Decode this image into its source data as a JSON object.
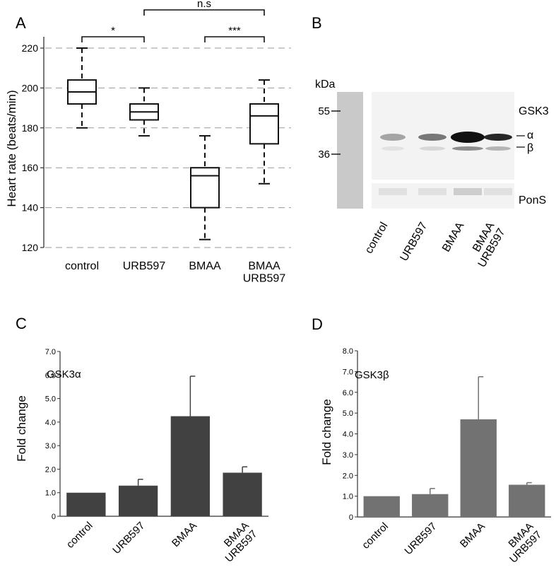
{
  "panel_labels": [
    "A",
    "B",
    "C",
    "D"
  ],
  "chart_data": [
    {
      "type": "box",
      "panel": "A",
      "ylabel": "Heart rate (beats/min)",
      "ylim": [
        120,
        220
      ],
      "yticks": [
        "120",
        "140",
        "160",
        "180",
        "200",
        "220"
      ],
      "grid": true,
      "categories": [
        "control",
        "URB597",
        "BMAA",
        "BMAA\nURB597"
      ],
      "boxes": [
        {
          "min": 180,
          "q1": 192,
          "median": 198,
          "q3": 204,
          "max": 220
        },
        {
          "min": 176,
          "q1": 184,
          "median": 188,
          "q3": 192,
          "max": 200
        },
        {
          "min": 124,
          "q1": 140,
          "median": 156,
          "q3": 160,
          "max": 176
        },
        {
          "min": 152,
          "q1": 172,
          "median": 186,
          "q3": 192,
          "max": 204
        }
      ],
      "significance": [
        {
          "from": 0,
          "to": 1,
          "label": "*"
        },
        {
          "from": 2,
          "to": 3,
          "label": "***"
        },
        {
          "from": 1,
          "to": 3,
          "label": "n.s"
        }
      ]
    },
    {
      "type": "bar",
      "panel": "C",
      "title": "GSK3α",
      "ylabel": "Fold change",
      "ylim": [
        0,
        7
      ],
      "yticks": [
        "0",
        "1.0",
        "2.0",
        "3.0",
        "4.0",
        "5.0",
        "6.0",
        "7.0"
      ],
      "categories": [
        "control",
        "URB597",
        "BMAA",
        "BMAA\nURB597"
      ],
      "values": [
        1.0,
        1.3,
        4.25,
        1.85
      ],
      "errors": [
        0,
        0.27,
        1.7,
        0.25
      ],
      "color": "#414141"
    },
    {
      "type": "bar",
      "panel": "D",
      "title": "GSK3β",
      "ylabel": "Fold change",
      "ylim": [
        0,
        8
      ],
      "yticks": [
        "0",
        "1.0",
        "2.0",
        "3.0",
        "4.0",
        "5.0",
        "6.0",
        "7.0",
        "8.0"
      ],
      "categories": [
        "control",
        "URB597",
        "BMAA",
        "BMAA\nURB597"
      ],
      "values": [
        1.0,
        1.1,
        4.7,
        1.55
      ],
      "errors": [
        0,
        0.27,
        2.05,
        0.1
      ],
      "color": "#727272"
    }
  ],
  "blot": {
    "unit_label": "kDa",
    "markers": [
      "55",
      "36"
    ],
    "target_label": "GSK3",
    "isoform_labels": [
      "α",
      "β"
    ],
    "loading_label": "PonS",
    "lanes": [
      "control",
      "URB597",
      "BMAA",
      "BMAA\nURB597"
    ],
    "colors": {
      "ladder": "#c9c9c9",
      "membrane": "#f3f3f3",
      "band": "#111111"
    }
  }
}
